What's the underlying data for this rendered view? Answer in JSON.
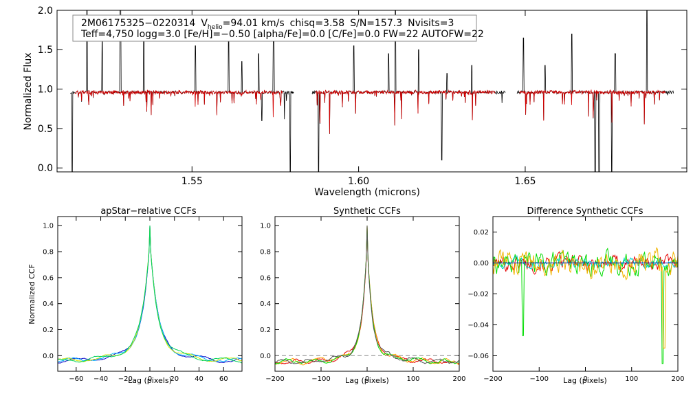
{
  "chart_data": [
    {
      "type": "line",
      "name": "spectrum",
      "xlabel": "Wavelength (microns)",
      "ylabel": "Normalized Flux",
      "xlim": [
        1.5095,
        1.6985
      ],
      "ylim": [
        -0.05,
        2.0
      ],
      "xticks": [
        1.55,
        1.6,
        1.65
      ],
      "xtick_labels": [
        "1.55",
        "1.60",
        "1.65"
      ],
      "yticks": [
        0.0,
        0.5,
        1.0,
        1.5,
        2.0
      ],
      "ytick_labels": [
        "0.0",
        "0.5",
        "1.0",
        "1.5",
        "2.0"
      ],
      "info_line1": {
        "star": "2M06175325−0220314",
        "vhelio_label": "V",
        "vhelio_sub": "helio",
        "vhelio_value": "=94.01 km/s",
        "chisq": "chisq=3.58",
        "snr": "S/N=157.3",
        "nvisits": "Nvisits=3"
      },
      "info_line2": "Teff=4,750 logg=3.0 [Fe/H]=−0.50 [alpha/Fe]=0.0 [C/Fe]=0.0 FW=22 AUTOFW=22",
      "chips": [
        {
          "name": "blue",
          "range": [
            1.5135,
            1.5805
          ]
        },
        {
          "name": "green",
          "range": [
            1.586,
            1.644
          ]
        },
        {
          "name": "red",
          "range": [
            1.6475,
            1.6945
          ]
        }
      ],
      "series": [
        {
          "name": "observed",
          "color": "#000000",
          "continuum": 0.96
        },
        {
          "name": "synthetic",
          "color": "#d40000",
          "continuum": 0.96
        }
      ],
      "emission_spikes": [
        1.5185,
        1.523,
        1.5285,
        1.5355,
        1.551,
        1.561,
        1.565,
        1.57,
        1.5745,
        1.5985,
        1.609,
        1.611,
        1.618,
        1.6265,
        1.634,
        1.6495,
        1.656,
        1.664,
        1.677,
        1.6865
      ],
      "spike_heights": [
        2.1,
        1.6,
        2.1,
        1.7,
        1.55,
        1.75,
        1.35,
        1.45,
        1.6,
        1.55,
        1.45,
        2.1,
        1.5,
        1.2,
        1.3,
        1.65,
        1.3,
        1.7,
        1.45,
        2.1
      ],
      "absorption_dips": [
        1.514,
        1.571,
        1.5795,
        1.588,
        1.625,
        1.671,
        1.6722,
        1.676
      ],
      "dip_depths": [
        -0.05,
        0.6,
        -0.05,
        -0.05,
        0.1,
        -0.05,
        -0.05,
        -0.05
      ]
    },
    {
      "type": "line",
      "name": "apstar-ccf",
      "title": "apStar−relative CCFs",
      "xlabel": "Lag (pixels)",
      "ylabel": "Normalized CCF",
      "xlim": [
        -75,
        75
      ],
      "ylim": [
        -0.12,
        1.07
      ],
      "xticks": [
        -60,
        -40,
        -20,
        0,
        20,
        40,
        60
      ],
      "xtick_labels": [
        "−60",
        "−40",
        "−20",
        "0",
        "20",
        "40",
        "60"
      ],
      "yticks": [
        0.0,
        0.2,
        0.4,
        0.6,
        0.8,
        1.0
      ],
      "ytick_labels": [
        "0.0",
        "0.2",
        "0.4",
        "0.6",
        "0.8",
        "1.0"
      ],
      "peak": 1.0,
      "series": [
        {
          "name": "visit-1",
          "color": "#0000c8"
        },
        {
          "name": "visit-2",
          "color": "#00b4ff"
        },
        {
          "name": "visit-3",
          "color": "#d2e600"
        },
        {
          "name": "visit-4",
          "color": "#00d25a"
        }
      ]
    },
    {
      "type": "line",
      "name": "synthetic-ccf",
      "title": "Synthetic CCFs",
      "xlabel": "Lag (pixels)",
      "ylabel": "",
      "xlim": [
        -200,
        200
      ],
      "ylim": [
        -0.12,
        1.07
      ],
      "xticks": [
        -200,
        -100,
        0,
        100,
        200
      ],
      "xtick_labels": [
        "−200",
        "−100",
        "0",
        "100",
        "200"
      ],
      "yticks": [
        0.0,
        0.2,
        0.4,
        0.6,
        0.8,
        1.0
      ],
      "ytick_labels": [
        "0.0",
        "0.2",
        "0.4",
        "0.6",
        "0.8",
        "1.0"
      ],
      "peak": 1.0,
      "series": [
        {
          "name": "visit-1",
          "color": "#e60000"
        },
        {
          "name": "visit-2",
          "color": "#ffaa00"
        },
        {
          "name": "visit-3",
          "color": "#00dc00"
        },
        {
          "name": "visit-4",
          "color": "#555555"
        }
      ]
    },
    {
      "type": "line",
      "name": "difference-ccf",
      "title": "Difference Synthetic CCFs",
      "xlabel": "Lag (pixels)",
      "ylabel": "",
      "xlim": [
        -200,
        200
      ],
      "ylim": [
        -0.07,
        0.03
      ],
      "xticks": [
        -200,
        -100,
        0,
        100,
        200
      ],
      "xtick_labels": [
        "−200",
        "−100",
        "0",
        "100",
        "200"
      ],
      "yticks": [
        -0.06,
        -0.04,
        -0.02,
        0.0,
        0.02
      ],
      "ytick_labels": [
        "−0.06",
        "−0.04",
        "−0.02",
        "0.00",
        "0.02"
      ],
      "series": [
        {
          "name": "diff-1",
          "color": "#e60000"
        },
        {
          "name": "diff-2",
          "color": "#00dc00"
        },
        {
          "name": "diff-3",
          "color": "#00d2c8"
        },
        {
          "name": "diff-4",
          "color": "#f0b400"
        },
        {
          "name": "zero-line",
          "color": "#0000b4"
        }
      ]
    }
  ]
}
